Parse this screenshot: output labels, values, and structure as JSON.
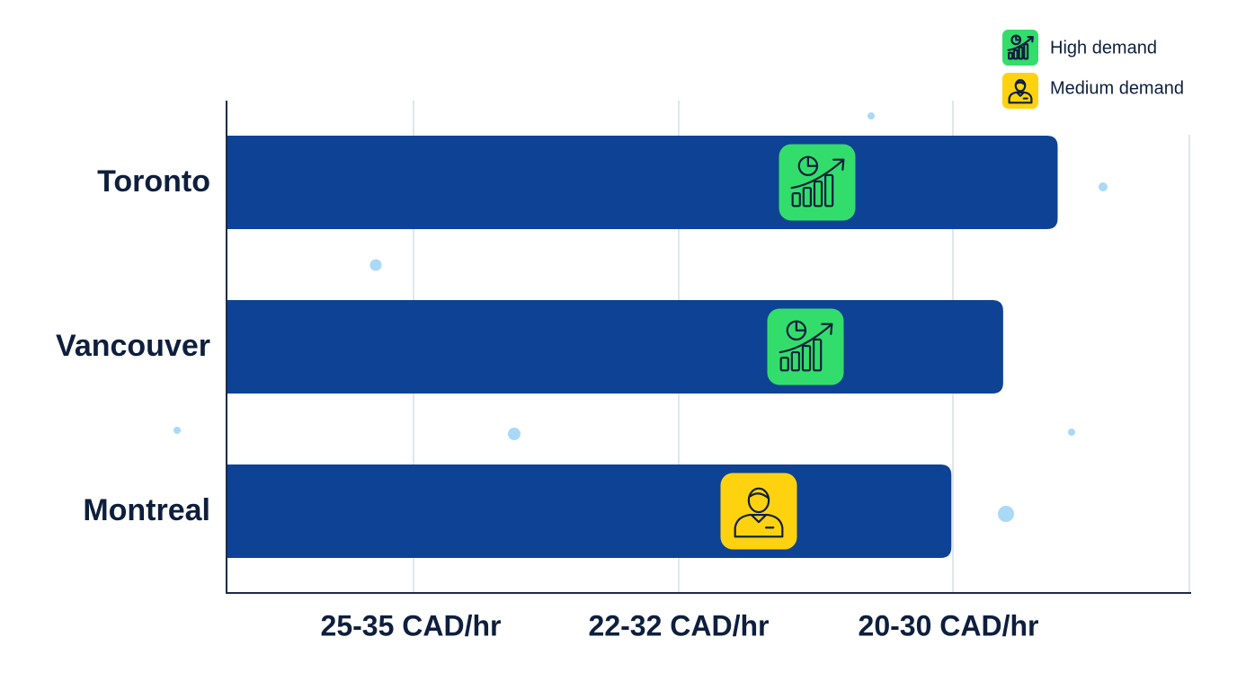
{
  "chart_data": {
    "type": "bar",
    "orientation": "horizontal",
    "categories": [
      "Toronto",
      "Vancouver",
      "Montreal"
    ],
    "values": [
      3.05,
      2.85,
      2.66
    ],
    "demand": [
      "High demand",
      "High demand",
      "Medium demand"
    ],
    "x_tick_labels": [
      "25-35 CAD/hr",
      "22-32 CAD/hr",
      "20-30 CAD/hr"
    ],
    "xlim": [
      0,
      3.53
    ],
    "grid": true,
    "legend": {
      "position": "top-right",
      "items": [
        {
          "label": "High demand",
          "icon": "growth-chart-icon",
          "color": "#33dd6b"
        },
        {
          "label": "Medium demand",
          "icon": "person-icon",
          "color": "#ffd20f"
        }
      ]
    }
  },
  "colors": {
    "bar": "#0e4294",
    "axis": "#1c2b45",
    "grid": "#d6dde6",
    "text": "#0e1f3d",
    "dots": "#a9d9f7"
  }
}
